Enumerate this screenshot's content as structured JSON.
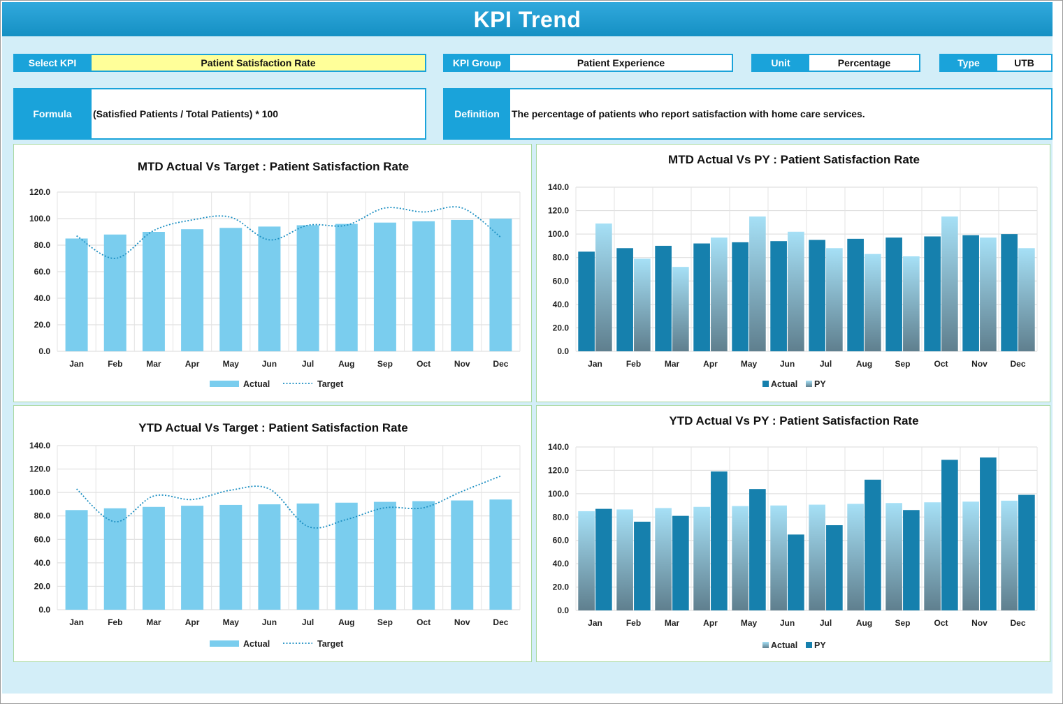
{
  "title": "KPI Trend",
  "filters": {
    "select_kpi_label": "Select KPI",
    "select_kpi_value": "Patient Satisfaction Rate",
    "kpi_group_label": "KPI Group",
    "kpi_group_value": "Patient Experience",
    "unit_label": "Unit",
    "unit_value": "Percentage",
    "type_label": "Type",
    "type_value": "UTB"
  },
  "info": {
    "formula_label": "Formula",
    "formula_value": "(Satisfied Patients / Total Patients) * 100",
    "definition_label": "Definition",
    "definition_value": "The percentage of patients who report satisfaction with home care services."
  },
  "colors": {
    "actual_light": "#7acdee",
    "target_line": "#1c8fc2",
    "actual_dark": "#1680ad",
    "py_light_top": "#a6e0f6",
    "py_light_bottom": "#5f7f8e"
  },
  "chart_data": [
    {
      "type": "bar",
      "title": "MTD Actual Vs Target : Patient Satisfaction Rate",
      "categories": [
        "Jan",
        "Feb",
        "Mar",
        "Apr",
        "May",
        "Jun",
        "Jul",
        "Aug",
        "Sep",
        "Oct",
        "Nov",
        "Dec"
      ],
      "series": [
        {
          "name": "Actual",
          "kind": "bar",
          "values": [
            85,
            88,
            90,
            92,
            93,
            94,
            95,
            96,
            97,
            98,
            99,
            100
          ]
        },
        {
          "name": "Target",
          "kind": "line",
          "values": [
            87,
            70,
            91,
            99,
            101,
            84,
            95,
            95,
            108,
            105,
            108,
            86
          ]
        }
      ],
      "ylim": [
        0,
        120
      ],
      "yticks": [
        "0.0",
        "20.0",
        "40.0",
        "60.0",
        "80.0",
        "100.0",
        "120.0"
      ],
      "grid": true,
      "legend": "bottom"
    },
    {
      "type": "bar",
      "title": "MTD Actual Vs PY : Patient Satisfaction Rate",
      "categories": [
        "Jan",
        "Feb",
        "Mar",
        "Apr",
        "May",
        "Jun",
        "Jul",
        "Aug",
        "Sep",
        "Oct",
        "Nov",
        "Dec"
      ],
      "series": [
        {
          "name": "Actual",
          "kind": "bar",
          "values": [
            85,
            88,
            90,
            92,
            93,
            94,
            95,
            96,
            97,
            98,
            99,
            100
          ]
        },
        {
          "name": "PY",
          "kind": "bar",
          "values": [
            109,
            79,
            72,
            97,
            115,
            102,
            88,
            83,
            81,
            115,
            97,
            88
          ]
        }
      ],
      "ylim": [
        0,
        140
      ],
      "yticks": [
        "0.0",
        "20.0",
        "40.0",
        "60.0",
        "80.0",
        "100.0",
        "120.0",
        "140.0"
      ],
      "grid": true,
      "legend": "bottom"
    },
    {
      "type": "bar",
      "title": "YTD Actual Vs Target : Patient Satisfaction Rate",
      "categories": [
        "Jan",
        "Feb",
        "Mar",
        "Apr",
        "May",
        "Jun",
        "Jul",
        "Aug",
        "Sep",
        "Oct",
        "Nov",
        "Dec"
      ],
      "series": [
        {
          "name": "Actual",
          "kind": "bar",
          "values": [
            85,
            86.5,
            87.7,
            88.7,
            89.4,
            89.9,
            90.6,
            91.3,
            92,
            92.6,
            93.2,
            94
          ]
        },
        {
          "name": "Target",
          "kind": "line",
          "values": [
            103,
            75,
            97,
            94,
            102,
            103,
            71,
            77,
            87,
            87,
            101,
            114
          ]
        }
      ],
      "ylim": [
        0,
        140
      ],
      "yticks": [
        "0.0",
        "20.0",
        "40.0",
        "60.0",
        "80.0",
        "100.0",
        "120.0",
        "140.0"
      ],
      "grid": true,
      "legend": "bottom"
    },
    {
      "type": "bar",
      "title": "YTD Actual Vs PY : Patient Satisfaction Rate",
      "categories": [
        "Jan",
        "Feb",
        "Mar",
        "Apr",
        "May",
        "Jun",
        "Jul",
        "Aug",
        "Sep",
        "Oct",
        "Nov",
        "Dec"
      ],
      "series": [
        {
          "name": "Actual",
          "kind": "bar",
          "values": [
            85,
            86.5,
            87.7,
            88.7,
            89.4,
            89.9,
            90.6,
            91.3,
            92,
            92.6,
            93.2,
            94
          ]
        },
        {
          "name": "PY",
          "kind": "bar",
          "values": [
            87,
            76,
            81,
            119,
            104,
            65,
            73,
            112,
            86,
            129,
            131,
            99
          ]
        }
      ],
      "ylim": [
        0,
        140
      ],
      "yticks": [
        "0.0",
        "20.0",
        "40.0",
        "60.0",
        "80.0",
        "100.0",
        "120.0",
        "140.0"
      ],
      "grid": true,
      "legend": "bottom"
    }
  ]
}
